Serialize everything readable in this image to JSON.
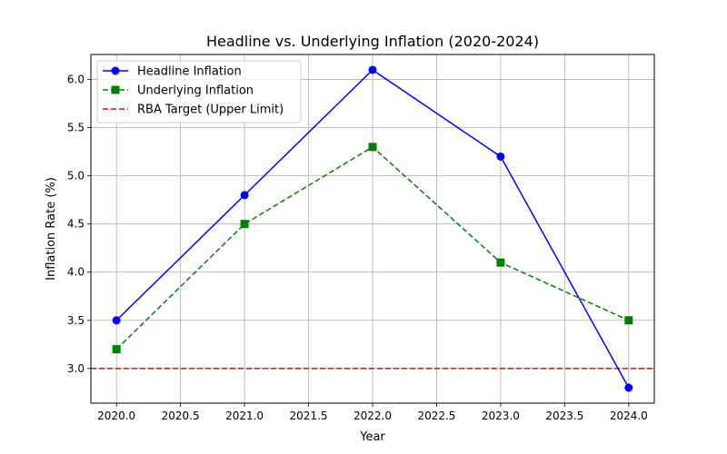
{
  "chart_data": {
    "type": "line",
    "title": "Headline vs. Underlying Inflation (2020-2024)",
    "xlabel": "Year",
    "ylabel": "Inflation Rate (%)",
    "x": [
      2020,
      2021,
      2022,
      2023,
      2024
    ],
    "xlim": [
      2019.8,
      2024.2
    ],
    "ylim": [
      2.64,
      6.26
    ],
    "xticks": [
      "2020.0",
      "2020.5",
      "2021.0",
      "2021.5",
      "2022.0",
      "2022.5",
      "2023.0",
      "2023.5",
      "2024.0"
    ],
    "yticks": [
      "3.0",
      "3.5",
      "4.0",
      "4.5",
      "5.0",
      "5.5",
      "6.0"
    ],
    "grid": true,
    "legend_position": "upper-left",
    "series": [
      {
        "name": "Headline Inflation",
        "values": [
          3.5,
          4.8,
          6.1,
          5.2,
          2.8
        ],
        "color": "#0000ff",
        "line_style": "solid",
        "marker": "circle"
      },
      {
        "name": "Underlying Inflation",
        "values": [
          3.2,
          4.5,
          5.3,
          4.1,
          3.5
        ],
        "color": "#008000",
        "line_style": "dashed",
        "marker": "square"
      }
    ],
    "reference_lines": [
      {
        "name": "RBA Target (Upper Limit)",
        "y": 3.0,
        "color": "#ff0000",
        "line_style": "dashed"
      }
    ]
  }
}
